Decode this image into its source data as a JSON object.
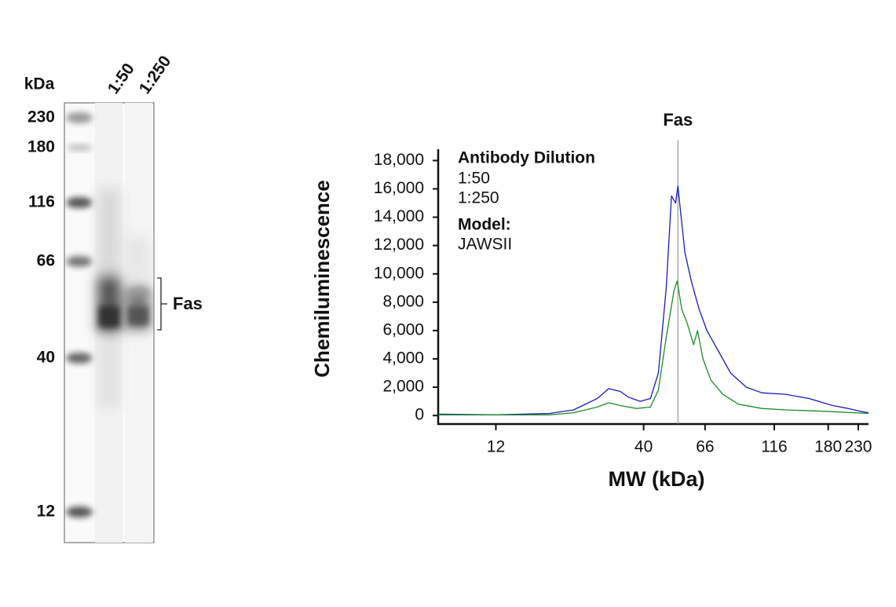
{
  "blot": {
    "unit_label": "kDa",
    "lane_labels": [
      "1:50",
      "1:250"
    ],
    "ladder": [
      "230",
      "180",
      "116",
      "66",
      "40",
      "12"
    ],
    "band_label": "Fas"
  },
  "chart_data": {
    "type": "line",
    "y_label": "Chemiluminescence",
    "x_label": "MW (kDa)",
    "xscale": "log",
    "xlim": [
      7.5,
      250
    ],
    "xticks": [
      12,
      40,
      66,
      116,
      180,
      230
    ],
    "ylim": [
      -600,
      18800
    ],
    "yticks": [
      0,
      {
        "value": 2000,
        "label": "2,000"
      },
      {
        "value": 4000,
        "label": "4,000"
      },
      {
        "value": 6000,
        "label": "6,000"
      },
      {
        "value": 8000,
        "label": "8,000"
      },
      {
        "value": 10000,
        "label": "10,000"
      },
      {
        "value": 12000,
        "label": "12,000"
      },
      {
        "value": 14000,
        "label": "14,000"
      },
      {
        "value": 16000,
        "label": "16,000"
      },
      {
        "value": 18000,
        "label": "18,000"
      }
    ],
    "legend_title": "Antibody Dilution",
    "annotations": [
      "Model:",
      "JAWSII"
    ],
    "marker": {
      "label": "Fas",
      "x": 52.9
    },
    "series": [
      {
        "name": "1:50",
        "color": "#1c1cb4",
        "text_color": "#2b3f9a",
        "x": [
          7.5,
          12,
          18.6,
          22.6,
          27.4,
          30.1,
          33.1,
          35.3,
          38.9,
          42.3,
          45.1,
          48.1,
          50.2,
          51.9,
          52.9,
          54.3,
          56.0,
          59.0,
          62.9,
          67.0,
          73.8,
          81.3,
          92.4,
          105,
          127,
          154,
          187,
          212,
          234,
          250
        ],
        "values": [
          100,
          50,
          150,
          400,
          1200,
          1900,
          1700,
          1300,
          1000,
          1200,
          3000,
          9000,
          15500,
          15000,
          16200,
          14000,
          11500,
          9500,
          7500,
          6000,
          4500,
          3000,
          2000,
          1600,
          1500,
          1200,
          700,
          500,
          300,
          200
        ]
      },
      {
        "name": "1:250",
        "color": "#1e8a2c",
        "text_color": "#1f8a3a",
        "x": [
          7.5,
          18.6,
          22.6,
          27.4,
          30.1,
          33.1,
          37.7,
          42.3,
          45.1,
          48.1,
          51.2,
          52.6,
          54.6,
          57.1,
          60.1,
          62.1,
          64.9,
          69.2,
          76.2,
          86.6,
          105,
          127,
          175,
          250
        ],
        "values": [
          50,
          50,
          200,
          600,
          900,
          700,
          500,
          600,
          1800,
          5500,
          8800,
          9500,
          7500,
          6500,
          5000,
          6000,
          4000,
          2500,
          1500,
          800,
          500,
          400,
          300,
          150
        ]
      }
    ]
  }
}
